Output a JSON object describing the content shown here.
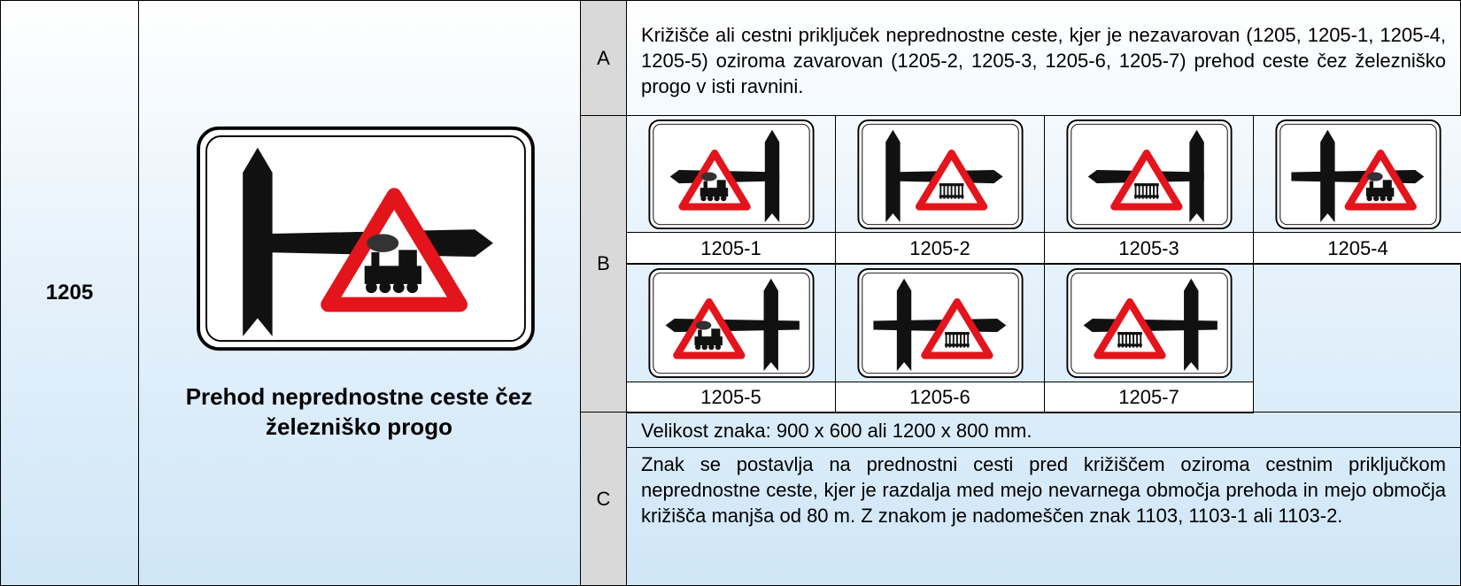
{
  "code": "1205",
  "sign_title": "Prehod neprednostne ceste čez železniško progo",
  "rows": [
    {
      "label": "A",
      "text": "Križišče ali cestni priključek neprednostne ceste, kjer je nezavarovan (1205, 1205-1, 1205-4, 1205-5) oziroma zavarovan (1205-2, 1205-3, 1205-6, 1205-7) prehod ceste čez železniško progo v isti ravnini."
    },
    {
      "label": "B",
      "signs": [
        "1205-1",
        "1205-2",
        "1205-3",
        "1205-4",
        "1205-5",
        "1205-6",
        "1205-7"
      ]
    },
    {
      "label": "C",
      "size": "Velikost znaka: 900 x 600 ali 1200 x 800 mm.",
      "text": "Znak se postavlja na prednostni cesti pred križiščem oziroma cestnim priključkom neprednostne ceste, kjer je razdalja med mejo nevarnega območja prehoda in mejo območja križišča manjša od 80 m. Z znakom je nadomeščen znak 1103, 1103-1 ali 1103-2."
    }
  ]
}
